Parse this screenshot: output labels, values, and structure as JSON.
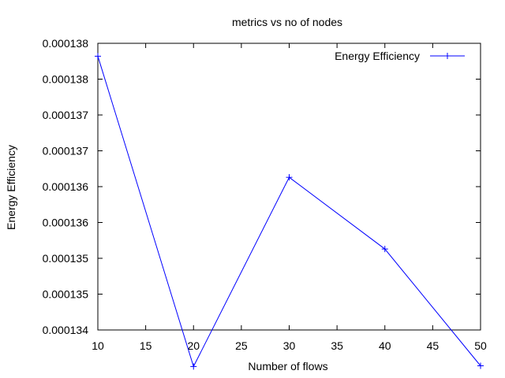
{
  "chart_data": {
    "type": "line",
    "title": "metrics vs no of nodes",
    "xlabel": "Number of flows",
    "ylabel": "Energy Efficiency",
    "xlim": [
      10,
      50
    ],
    "ylim": [
      0.000134,
      0.000138
    ],
    "x_ticks": [
      10,
      15,
      20,
      25,
      30,
      35,
      40,
      45,
      50
    ],
    "x_tick_labels": [
      "10",
      "15",
      "20",
      "25",
      "30",
      "35",
      "40",
      "45",
      "50"
    ],
    "y_ticks": [
      0.000134,
      0.0001345,
      0.000135,
      0.0001355,
      0.000136,
      0.0001365,
      0.000137,
      0.0001375,
      0.000138
    ],
    "y_tick_labels": [
      "0.000134",
      "0.000135",
      "0.000135",
      "0.000136",
      "0.000136",
      "0.000137",
      "0.000137",
      "0.000138",
      "0.000138"
    ],
    "grid": false,
    "legend_position": "top-right",
    "series": [
      {
        "name": "Energy Efficiency",
        "color": "#0000ff",
        "marker": "plus",
        "x": [
          10,
          20,
          30,
          40,
          50
        ],
        "y": [
          0.00013782,
          0.00013349,
          0.00013613,
          0.00013513,
          0.0001335
        ]
      }
    ]
  }
}
